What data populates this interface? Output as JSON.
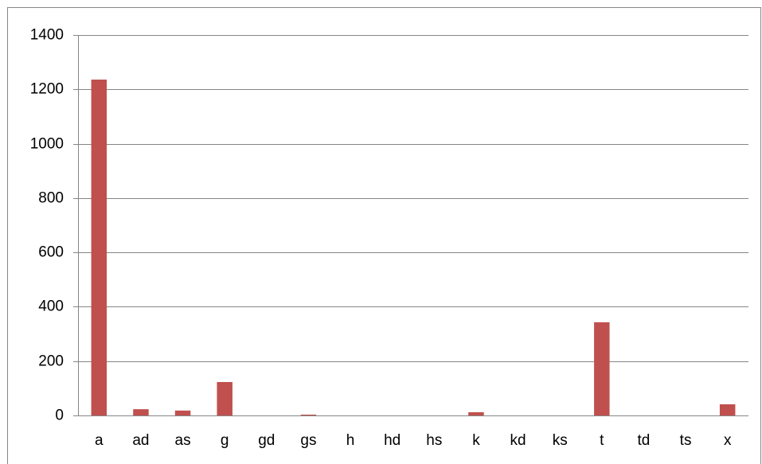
{
  "chart_data": {
    "type": "bar",
    "categories": [
      "a",
      "ad",
      "as",
      "g",
      "gd",
      "gs",
      "h",
      "hd",
      "hs",
      "k",
      "kd",
      "ks",
      "t",
      "td",
      "ts",
      "x"
    ],
    "values": [
      1236,
      23,
      18,
      123,
      0,
      3,
      0,
      0,
      0,
      12,
      0,
      0,
      343,
      0,
      0,
      41
    ],
    "color": "#c0504d",
    "ylim": [
      0,
      1400
    ],
    "yticks": [
      0,
      200,
      400,
      600,
      800,
      1000,
      1200,
      1400
    ],
    "grid": true
  }
}
